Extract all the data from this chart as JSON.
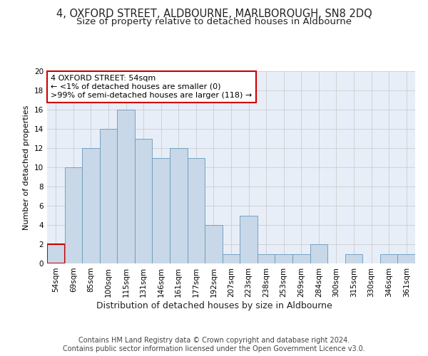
{
  "title": "4, OXFORD STREET, ALDBOURNE, MARLBOROUGH, SN8 2DQ",
  "subtitle": "Size of property relative to detached houses in Aldbourne",
  "xlabel": "Distribution of detached houses by size in Aldbourne",
  "ylabel": "Number of detached properties",
  "categories": [
    "54sqm",
    "69sqm",
    "85sqm",
    "100sqm",
    "115sqm",
    "131sqm",
    "146sqm",
    "161sqm",
    "177sqm",
    "192sqm",
    "207sqm",
    "223sqm",
    "238sqm",
    "253sqm",
    "269sqm",
    "284sqm",
    "300sqm",
    "315sqm",
    "330sqm",
    "346sqm",
    "361sqm"
  ],
  "values": [
    2,
    10,
    12,
    14,
    16,
    13,
    11,
    12,
    11,
    4,
    1,
    5,
    1,
    1,
    1,
    2,
    0,
    1,
    0,
    1,
    1
  ],
  "bar_color": "#c8d8e8",
  "bar_edge_color": "#6699bb",
  "annotation_box_text": "4 OXFORD STREET: 54sqm\n← <1% of detached houses are smaller (0)\n>99% of semi-detached houses are larger (118) →",
  "annotation_box_color": "#ffffff",
  "annotation_box_edge_color": "#cc0000",
  "highlight_bar_index": 0,
  "ylim": [
    0,
    20
  ],
  "yticks": [
    0,
    2,
    4,
    6,
    8,
    10,
    12,
    14,
    16,
    18,
    20
  ],
  "grid_color": "#cccccc",
  "bg_color": "#e8eef8",
  "footer": "Contains HM Land Registry data © Crown copyright and database right 2024.\nContains public sector information licensed under the Open Government Licence v3.0.",
  "title_fontsize": 10.5,
  "subtitle_fontsize": 9.5,
  "xlabel_fontsize": 9,
  "ylabel_fontsize": 8,
  "tick_fontsize": 7.5,
  "annotation_fontsize": 8,
  "footer_fontsize": 7
}
